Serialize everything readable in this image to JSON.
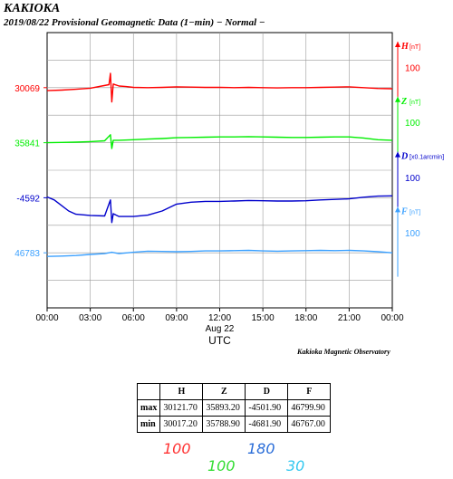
{
  "header": {
    "station": "KAKIOKA",
    "subtitle": "2019/08/22  Provisional Geomagnetic Data (1−min)  − Normal −"
  },
  "chart_data": {
    "type": "line",
    "x_ticks": [
      "00:00",
      "03:00",
      "06:00",
      "09:00",
      "12:00",
      "15:00",
      "18:00",
      "21:00",
      "00:00"
    ],
    "date_label": "Aug 22",
    "xlabel": "UTC",
    "xlim_hours": [
      0,
      24
    ],
    "grid": true,
    "series": [
      {
        "name": "H",
        "unit": "[nT]",
        "color": "#ff0000",
        "base_label": "30069",
        "scale_label": "100",
        "scale_nT": 100,
        "points": [
          [
            0,
            30058
          ],
          [
            1,
            30060
          ],
          [
            2,
            30063
          ],
          [
            3,
            30067
          ],
          [
            3.8,
            30075
          ],
          [
            4.3,
            30080
          ],
          [
            4.4,
            30121
          ],
          [
            4.5,
            30017
          ],
          [
            4.6,
            30082
          ],
          [
            5,
            30075
          ],
          [
            5.5,
            30073
          ],
          [
            6,
            30070
          ],
          [
            7,
            30069
          ],
          [
            8,
            30070
          ],
          [
            9,
            30072
          ],
          [
            10,
            30071
          ],
          [
            11,
            30070
          ],
          [
            12,
            30070
          ],
          [
            13,
            30069
          ],
          [
            14,
            30070
          ],
          [
            15,
            30069
          ],
          [
            16,
            30068
          ],
          [
            17,
            30069
          ],
          [
            18,
            30069
          ],
          [
            19,
            30070
          ],
          [
            20,
            30071
          ],
          [
            21,
            30072
          ],
          [
            22,
            30069
          ],
          [
            23,
            30066
          ],
          [
            24,
            30065
          ]
        ]
      },
      {
        "name": "Z",
        "unit": "[nT]",
        "color": "#00ee00",
        "base_label": "35841",
        "scale_label": "100",
        "scale_nT": 100,
        "points": [
          [
            0,
            35841
          ],
          [
            1,
            35842
          ],
          [
            2,
            35843
          ],
          [
            3,
            35845
          ],
          [
            4,
            35848
          ],
          [
            4.4,
            35870
          ],
          [
            4.5,
            35820
          ],
          [
            4.6,
            35850
          ],
          [
            5,
            35850
          ],
          [
            6,
            35852
          ],
          [
            7,
            35854
          ],
          [
            8,
            35856
          ],
          [
            9,
            35859
          ],
          [
            10,
            35860
          ],
          [
            11,
            35861
          ],
          [
            12,
            35862
          ],
          [
            13,
            35862
          ],
          [
            14,
            35863
          ],
          [
            15,
            35862
          ],
          [
            16,
            35861
          ],
          [
            17,
            35860
          ],
          [
            18,
            35860
          ],
          [
            19,
            35861
          ],
          [
            20,
            35862
          ],
          [
            21,
            35862
          ],
          [
            22,
            35858
          ],
          [
            23,
            35852
          ],
          [
            24,
            35850
          ]
        ]
      },
      {
        "name": "D",
        "unit": "[x0.1arcmin]",
        "color": "#0000cc",
        "base_label": "-4592",
        "scale_label": "100",
        "scale_nT": 100,
        "points": [
          [
            0,
            -4589
          ],
          [
            0.5,
            -4600
          ],
          [
            1,
            -4620
          ],
          [
            1.5,
            -4640
          ],
          [
            2,
            -4652
          ],
          [
            3,
            -4656
          ],
          [
            4,
            -4658
          ],
          [
            4.4,
            -4600
          ],
          [
            4.5,
            -4682
          ],
          [
            4.6,
            -4650
          ],
          [
            5,
            -4660
          ],
          [
            6,
            -4660
          ],
          [
            7,
            -4655
          ],
          [
            8,
            -4640
          ],
          [
            9,
            -4615
          ],
          [
            10,
            -4608
          ],
          [
            11,
            -4605
          ],
          [
            12,
            -4605
          ],
          [
            13,
            -4604
          ],
          [
            14,
            -4602
          ],
          [
            15,
            -4603
          ],
          [
            16,
            -4604
          ],
          [
            17,
            -4604
          ],
          [
            18,
            -4603
          ],
          [
            19,
            -4600
          ],
          [
            20,
            -4598
          ],
          [
            21,
            -4596
          ],
          [
            22,
            -4590
          ],
          [
            23,
            -4586
          ],
          [
            24,
            -4585
          ]
        ]
      },
      {
        "name": "F",
        "unit": "[nT]",
        "color": "#3aa0ff",
        "base_label": "46783",
        "scale_label": "100",
        "scale_nT": 100,
        "points": [
          [
            0,
            46770
          ],
          [
            1,
            46771
          ],
          [
            2,
            46773
          ],
          [
            3,
            46777
          ],
          [
            4,
            46780
          ],
          [
            4.5,
            46785
          ],
          [
            5,
            46780
          ],
          [
            6,
            46785
          ],
          [
            7,
            46789
          ],
          [
            8,
            46788
          ],
          [
            9,
            46787
          ],
          [
            10,
            46788
          ],
          [
            11,
            46790
          ],
          [
            12,
            46790
          ],
          [
            13,
            46791
          ],
          [
            14,
            46792
          ],
          [
            15,
            46790
          ],
          [
            16,
            46789
          ],
          [
            17,
            46790
          ],
          [
            18,
            46791
          ],
          [
            19,
            46792
          ],
          [
            20,
            46791
          ],
          [
            21,
            46792
          ],
          [
            22,
            46790
          ],
          [
            23,
            46787
          ],
          [
            24,
            46783
          ]
        ]
      }
    ]
  },
  "footer": {
    "observatory": "Kakioka Magnetic Observatory"
  },
  "stats": {
    "columns": [
      "H",
      "Z",
      "D",
      "F"
    ],
    "rows": [
      {
        "label": "max",
        "values": [
          "30121.70",
          "35893.20",
          "-4501.90",
          "46799.90"
        ]
      },
      {
        "label": "min",
        "values": [
          "30017.20",
          "35788.90",
          "-4681.90",
          "46767.00"
        ]
      }
    ]
  },
  "scales": [
    {
      "text": "100",
      "color": "#ff3333"
    },
    {
      "text": "100",
      "color": "#33dd33"
    },
    {
      "text": "180",
      "color": "#2a6dd8"
    },
    {
      "text": "30",
      "color": "#33c8f0"
    }
  ]
}
